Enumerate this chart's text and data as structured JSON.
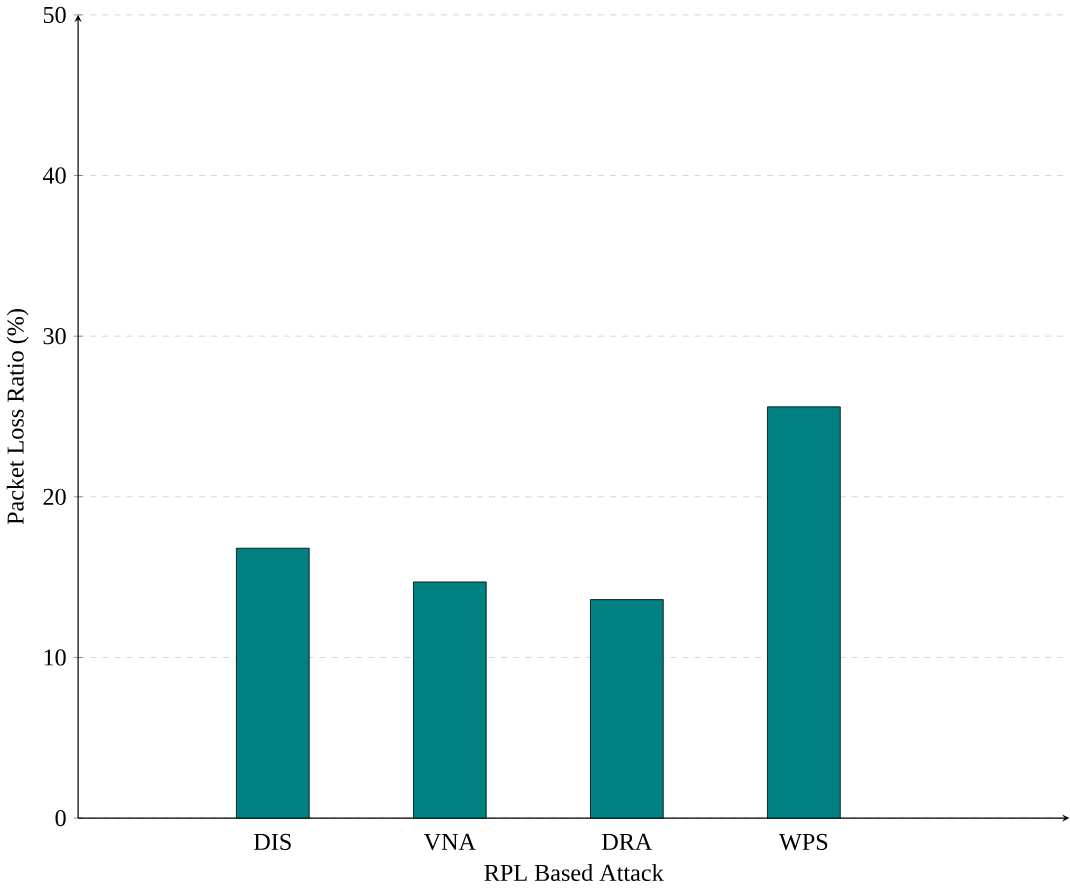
{
  "chart_data": {
    "type": "bar",
    "xlabel": "RPL Based Attack",
    "ylabel": "Packet Loss Ratio (%)",
    "categories": [
      "DIS",
      "VNA",
      "DRA",
      "WPS"
    ],
    "values": [
      16.8,
      14.7,
      13.6,
      25.6
    ],
    "color": "#008080",
    "ylim": [
      0,
      50
    ],
    "yticks": [
      0,
      10,
      20,
      30,
      40,
      50
    ],
    "grid": "y"
  }
}
